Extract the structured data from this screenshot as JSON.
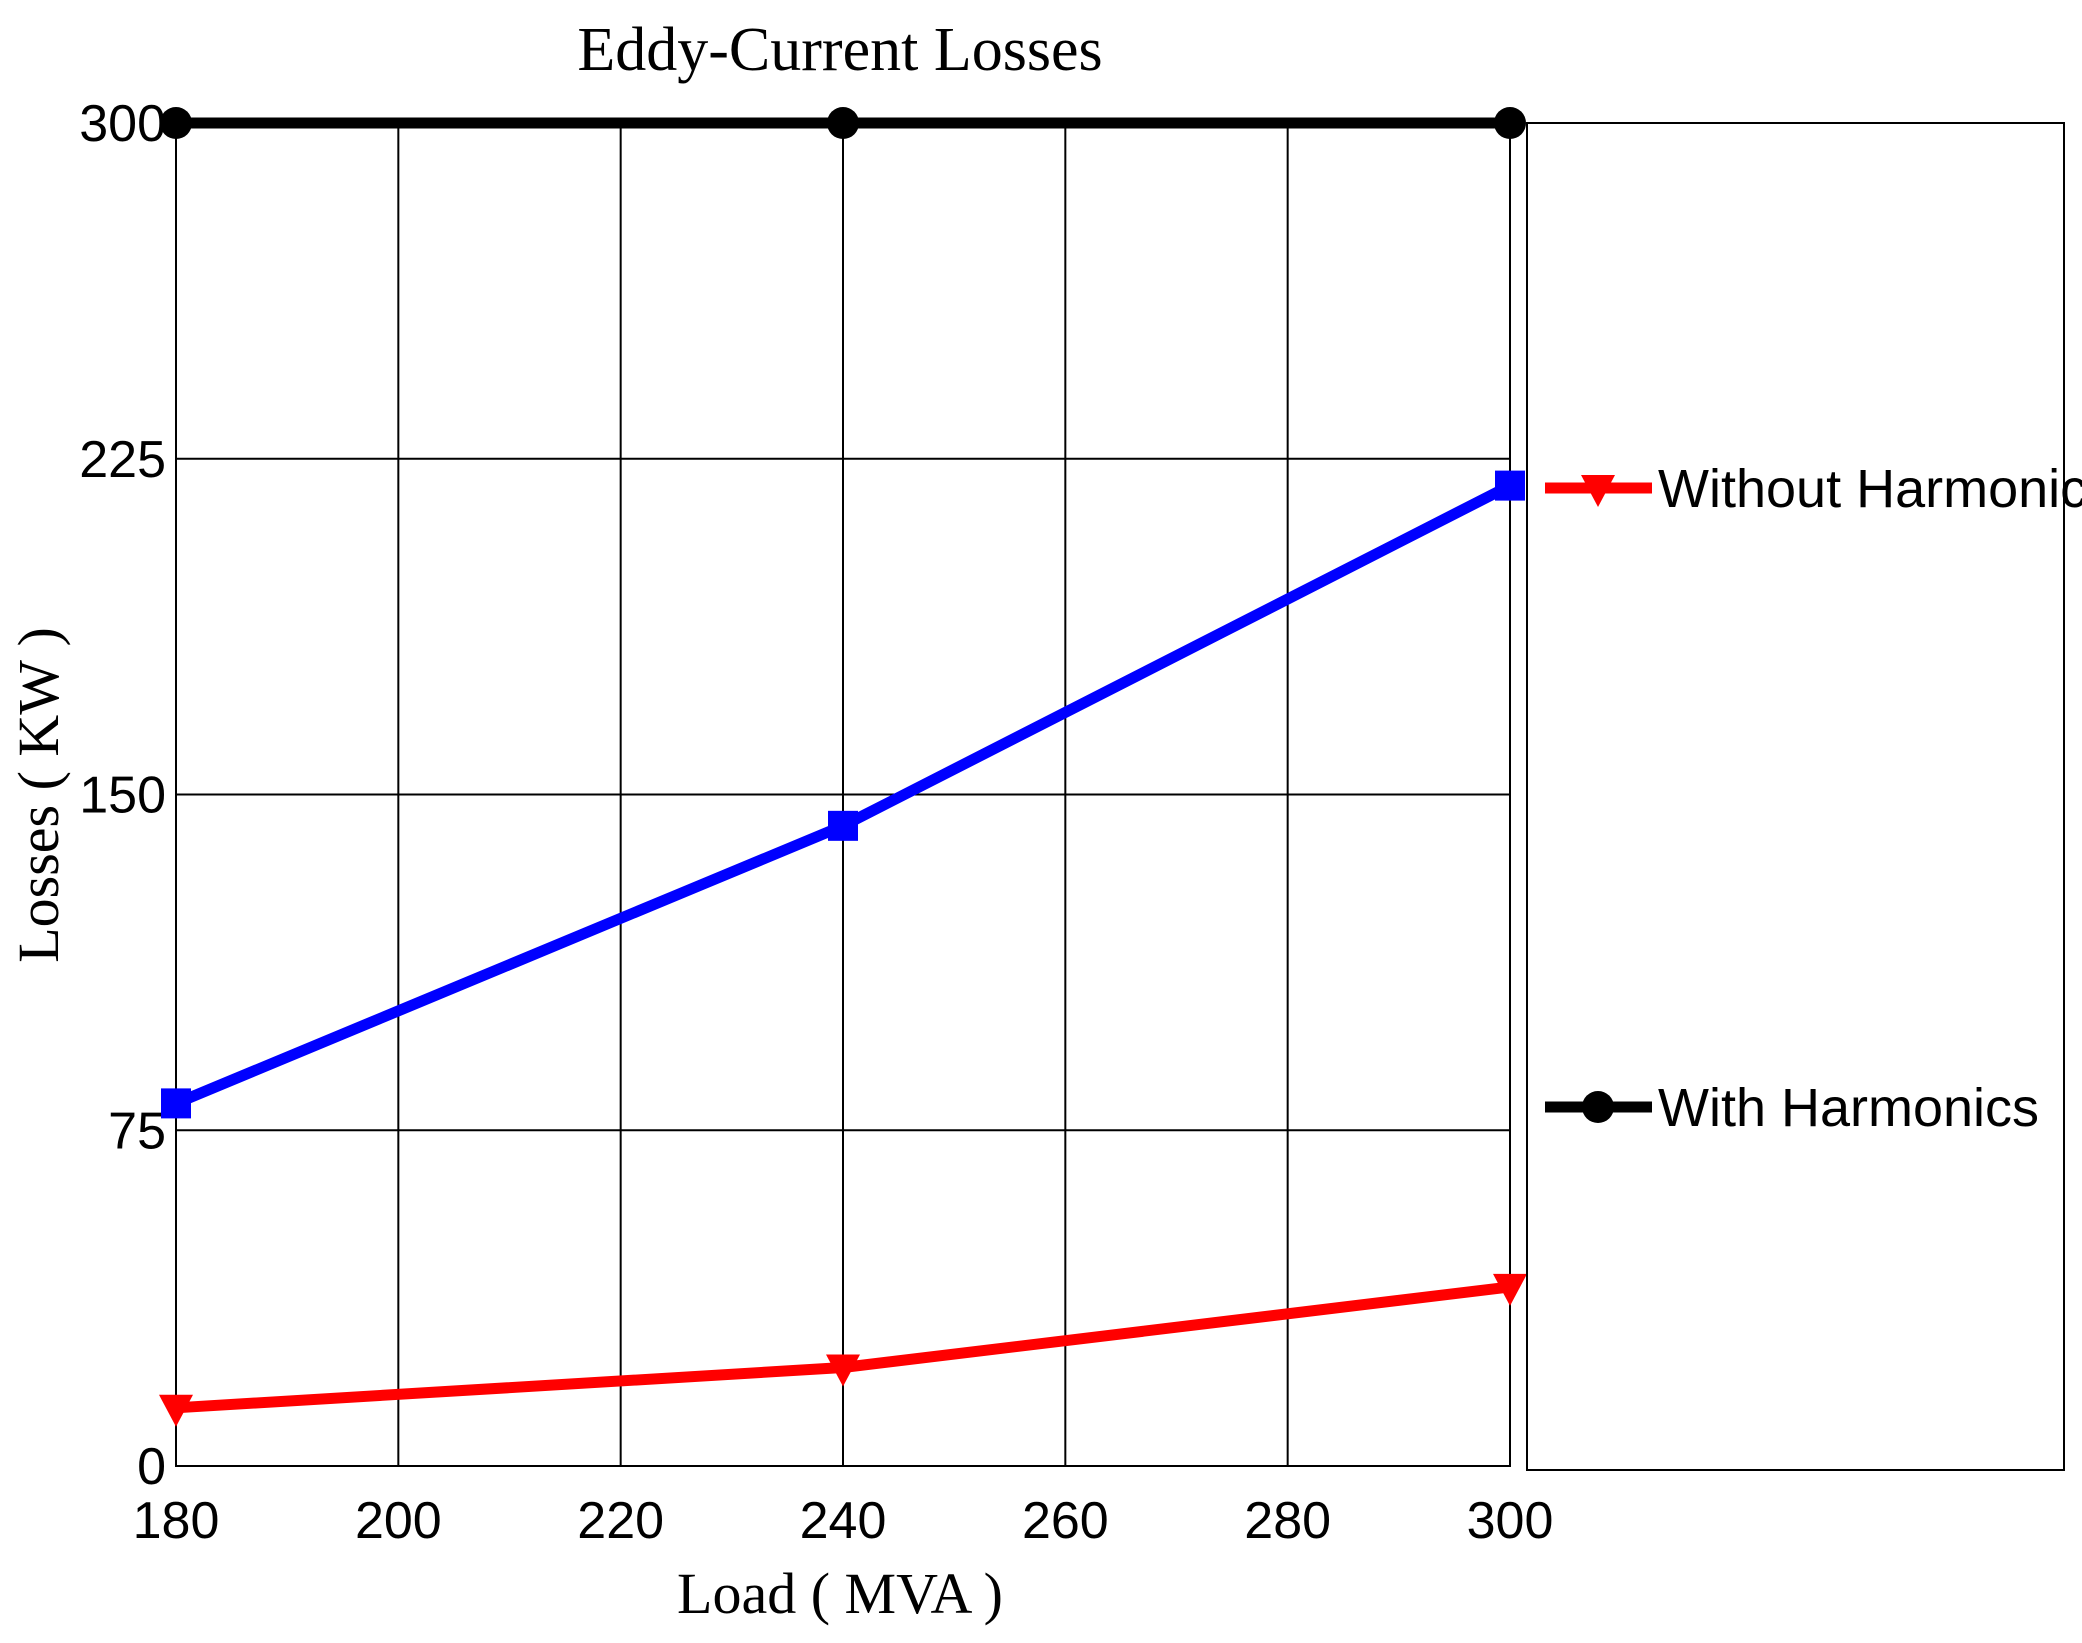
{
  "chart_data": {
    "type": "line",
    "title": "Eddy-Current Losses",
    "xlabel": "Load ( MVA )",
    "ylabel": "Losses ( KW )",
    "xlim": [
      180,
      300
    ],
    "ylim": [
      0,
      300
    ],
    "x_ticks": [
      180,
      200,
      220,
      240,
      260,
      280,
      300
    ],
    "x_tick_labels": [
      "180",
      "200",
      "220",
      "240",
      "260",
      "280",
      "300"
    ],
    "y_ticks": [
      0,
      75,
      150,
      225,
      300
    ],
    "y_tick_labels": [
      "0",
      "75",
      "150",
      "225",
      "300"
    ],
    "grid": true,
    "legend_position": "right",
    "x": [
      180,
      240,
      300
    ],
    "series": [
      {
        "name": "Without Harmonics",
        "color": "#ff0000",
        "marker": "triangle-down",
        "values": [
          13,
          22,
          40
        ]
      },
      {
        "name": "With Harmonics",
        "color": "#000000",
        "marker": "circle",
        "values": [
          300,
          300,
          300
        ]
      },
      {
        "name": "",
        "color": "#0000ff",
        "marker": "square",
        "values": [
          81,
          143,
          219
        ]
      }
    ]
  }
}
